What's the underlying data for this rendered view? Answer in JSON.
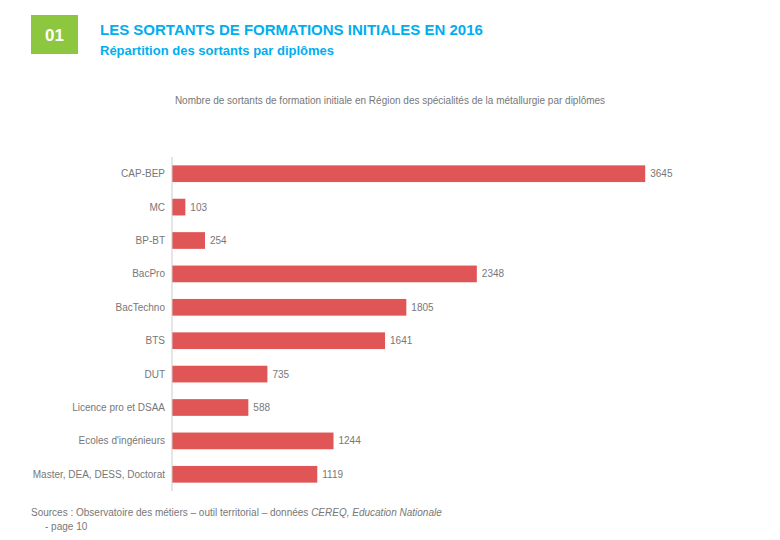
{
  "chart_data": {
    "type": "bar",
    "orientation": "horizontal",
    "title": "LES SORTANTS DE FORMATIONS INITIALES EN 2016",
    "subtitle": "Répartition des sortants par diplômes",
    "annotations": [
      "01",
      "Nombre de sortants de formation initiale en Région des spécialités de la métallurgie par diplômes",
      "Sources : Observatoire des métiers – outil territorial – données ",
      "CEREQ, Education Nationale",
      "- page 10"
    ],
    "categories": [
      "CAP-BEP",
      "MC",
      "BP-BT",
      "BacPro",
      "BacTechno",
      "BTS",
      "DUT",
      "Licence pro et DSAA",
      "Ecoles d'ingénieurs",
      "Master, DEA, DESS, Doctorat"
    ],
    "values": [
      3645,
      103,
      254,
      2348,
      1805,
      1641,
      735,
      588,
      1244,
      1119
    ],
    "color": "#e05555",
    "xlim": [
      0,
      4082.4
    ],
    "data_labels": true,
    "tick_labels": "y",
    "grid": false
  }
}
